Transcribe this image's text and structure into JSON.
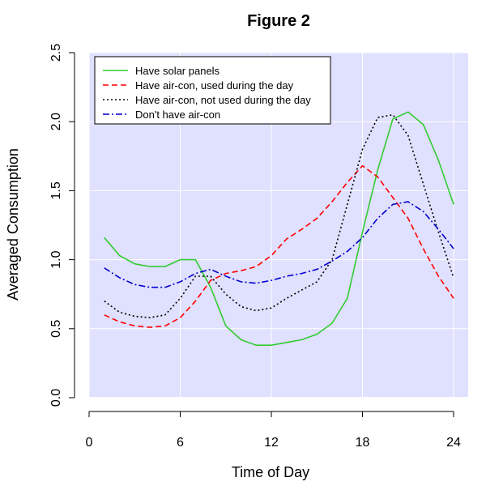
{
  "chart_data": {
    "type": "line",
    "title": "Figure 2",
    "xlabel": "Time of Day",
    "ylabel": "Averaged Consumption",
    "xlim": [
      0,
      24
    ],
    "ylim": [
      0,
      2.5
    ],
    "x_ticks": [
      "0",
      "6",
      "12",
      "18",
      "24"
    ],
    "y_ticks": [
      "0.0",
      "0.5",
      "1.0",
      "1.5",
      "2.0",
      "2.5"
    ],
    "x_tick_values": [
      0,
      6,
      12,
      18,
      24
    ],
    "y_tick_values": [
      0,
      0.5,
      1.0,
      1.5,
      2.0,
      2.5
    ],
    "legend_position": "top-left",
    "plot_background": "#e0e0ff",
    "x": [
      1,
      2,
      3,
      4,
      5,
      6,
      7,
      8,
      9,
      10,
      11,
      12,
      13,
      14,
      15,
      16,
      17,
      18,
      19,
      20,
      21,
      22,
      23,
      24
    ],
    "series": [
      {
        "name": "Have solar panels",
        "color": "#33cc33",
        "dash": "solid",
        "values": [
          1.16,
          1.03,
          0.97,
          0.95,
          0.95,
          1.0,
          1.0,
          0.8,
          0.52,
          0.42,
          0.38,
          0.38,
          0.4,
          0.42,
          0.46,
          0.54,
          0.72,
          1.2,
          1.65,
          2.02,
          2.07,
          1.98,
          1.72,
          1.4
        ]
      },
      {
        "name": "Have air-con, used during the day",
        "color": "#ff0000",
        "dash": "dashed",
        "values": [
          0.6,
          0.55,
          0.52,
          0.51,
          0.52,
          0.58,
          0.7,
          0.85,
          0.9,
          0.92,
          0.95,
          1.03,
          1.15,
          1.22,
          1.3,
          1.42,
          1.56,
          1.68,
          1.6,
          1.45,
          1.3,
          1.08,
          0.88,
          0.72
        ]
      },
      {
        "name": "Have air-con, not used during the day",
        "color": "#000000",
        "dash": "dotted",
        "values": [
          0.7,
          0.62,
          0.59,
          0.58,
          0.6,
          0.72,
          0.88,
          0.88,
          0.75,
          0.66,
          0.63,
          0.65,
          0.72,
          0.78,
          0.84,
          1.0,
          1.4,
          1.8,
          2.03,
          2.05,
          1.9,
          1.55,
          1.2,
          0.87
        ]
      },
      {
        "name": "Don't have air-con",
        "color": "#0000cc",
        "dash": "dotdash",
        "values": [
          0.94,
          0.87,
          0.82,
          0.8,
          0.8,
          0.84,
          0.9,
          0.93,
          0.88,
          0.84,
          0.83,
          0.85,
          0.88,
          0.9,
          0.93,
          0.99,
          1.06,
          1.16,
          1.3,
          1.4,
          1.42,
          1.35,
          1.22,
          1.08
        ]
      }
    ]
  }
}
